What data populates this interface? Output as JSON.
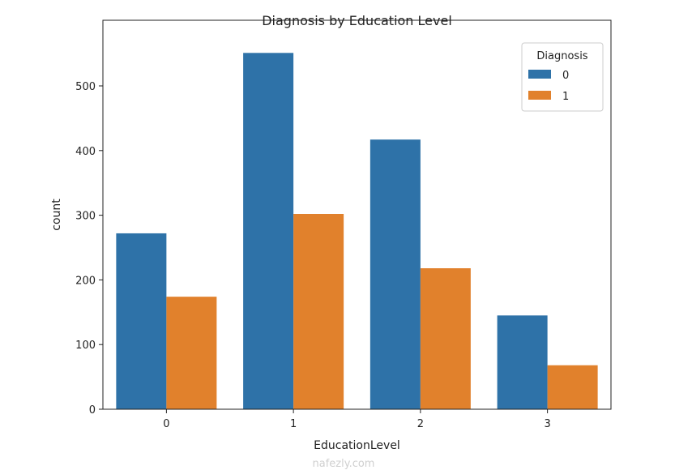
{
  "chart_data": {
    "type": "bar",
    "title": "Diagnosis by Education Level",
    "xlabel": "EducationLevel",
    "ylabel": "count",
    "categories": [
      "0",
      "1",
      "2",
      "3"
    ],
    "ylim": [
      0,
      600
    ],
    "yticks": [
      0,
      100,
      200,
      300,
      400,
      500
    ],
    "legend": {
      "title": "Diagnosis",
      "placement": "top-right"
    },
    "series": [
      {
        "name": "0",
        "color": "#2e72a8",
        "values": [
          272,
          551,
          417,
          145
        ]
      },
      {
        "name": "1",
        "color": "#e1812c",
        "values": [
          174,
          302,
          218,
          68
        ]
      }
    ]
  },
  "watermark": "nafezly.com"
}
